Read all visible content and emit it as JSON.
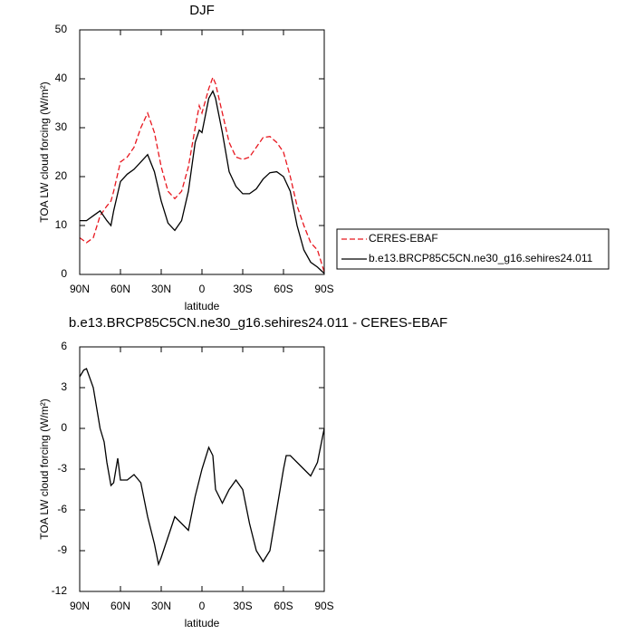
{
  "chart_data": [
    {
      "type": "line",
      "title": "DJF",
      "xlabel": "latitude",
      "ylabel": "TOA LW cloud forcing (W/m²)",
      "x": [
        90,
        85,
        80,
        75,
        70,
        67,
        65,
        60,
        55,
        50,
        45,
        40,
        35,
        30,
        25,
        20,
        15,
        10,
        5,
        2,
        0,
        -5,
        -8,
        -10,
        -15,
        -20,
        -25,
        -30,
        -35,
        -40,
        -45,
        -50,
        -55,
        -60,
        -65,
        -70,
        -75,
        -80,
        -85,
        -90
      ],
      "xlim": [
        90,
        -90
      ],
      "xticks": [
        {
          "value": 90,
          "label": "90N"
        },
        {
          "value": 60,
          "label": "60N"
        },
        {
          "value": 30,
          "label": "30N"
        },
        0,
        {
          "value": -30,
          "label": "30S"
        },
        {
          "value": -60,
          "label": "60S"
        },
        {
          "value": -90,
          "label": "90S"
        }
      ],
      "ylim": [
        0,
        50
      ],
      "yticks": [
        0,
        10,
        20,
        30,
        40,
        50
      ],
      "legend": "right",
      "series": [
        {
          "name": "CERES-EBAF",
          "color": "#e8171f",
          "dash": true,
          "values": [
            7.5,
            6.5,
            7.5,
            12,
            14,
            15,
            17,
            23,
            24,
            26,
            30,
            33,
            29,
            22,
            17,
            15.5,
            17,
            22,
            30,
            34.5,
            33,
            38,
            40.3,
            39,
            33,
            27,
            24,
            23.5,
            24,
            26,
            28,
            28.2,
            27,
            25,
            20,
            14,
            10,
            6.5,
            5,
            0.5
          ]
        },
        {
          "name": "b.e13.BRCP85C5CN.ne30_g16.sehires24.011",
          "color": "#000000",
          "dash": false,
          "values": [
            11,
            11,
            12,
            13,
            11,
            10,
            13,
            19,
            20.5,
            21.5,
            23,
            24.5,
            21,
            15,
            10.5,
            9,
            11,
            17,
            27,
            29.5,
            29,
            36,
            37.5,
            36,
            29,
            21,
            18,
            16.5,
            16.5,
            17.5,
            19.5,
            20.8,
            21,
            20,
            17,
            10,
            5,
            2.5,
            1.5,
            0.2
          ]
        }
      ]
    },
    {
      "type": "line",
      "title": "b.e13.BRCP85C5CN.ne30_g16.sehires24.011 - CERES-EBAF",
      "xlabel": "latitude",
      "ylabel": "TOA LW cloud forcing (W/m²)",
      "x": [
        90,
        87,
        85,
        80,
        75,
        72,
        70,
        67,
        65,
        62,
        60,
        55,
        50,
        45,
        40,
        35,
        32,
        30,
        25,
        20,
        15,
        10,
        5,
        0,
        -5,
        -8,
        -10,
        -15,
        -20,
        -25,
        -30,
        -35,
        -40,
        -45,
        -50,
        -55,
        -60,
        -62,
        -65,
        -70,
        -75,
        -80,
        -85,
        -90
      ],
      "xlim": [
        90,
        -90
      ],
      "xticks": [
        {
          "value": 90,
          "label": "90N"
        },
        {
          "value": 60,
          "label": "60N"
        },
        {
          "value": 30,
          "label": "30N"
        },
        0,
        {
          "value": -30,
          "label": "30S"
        },
        {
          "value": -60,
          "label": "60S"
        },
        {
          "value": -90,
          "label": "90S"
        }
      ],
      "ylim": [
        -12,
        6
      ],
      "yticks": [
        -12,
        -9,
        -6,
        -3,
        0,
        3,
        6
      ],
      "series": [
        {
          "color": "#000000",
          "dash": false,
          "values": [
            3.8,
            4.3,
            4.4,
            3,
            0,
            -1,
            -2.5,
            -4.2,
            -4,
            -2.2,
            -3.8,
            -3.8,
            -3.4,
            -4,
            -6.5,
            -8.5,
            -10,
            -9.5,
            -8,
            -6.5,
            -7,
            -7.5,
            -5,
            -3,
            -1.4,
            -2,
            -4.5,
            -5.5,
            -4.5,
            -3.8,
            -4.5,
            -7,
            -9,
            -9.8,
            -9,
            -6,
            -3,
            -2,
            -2,
            -2.5,
            -3,
            -3.5,
            -2.5,
            0
          ]
        }
      ]
    }
  ]
}
